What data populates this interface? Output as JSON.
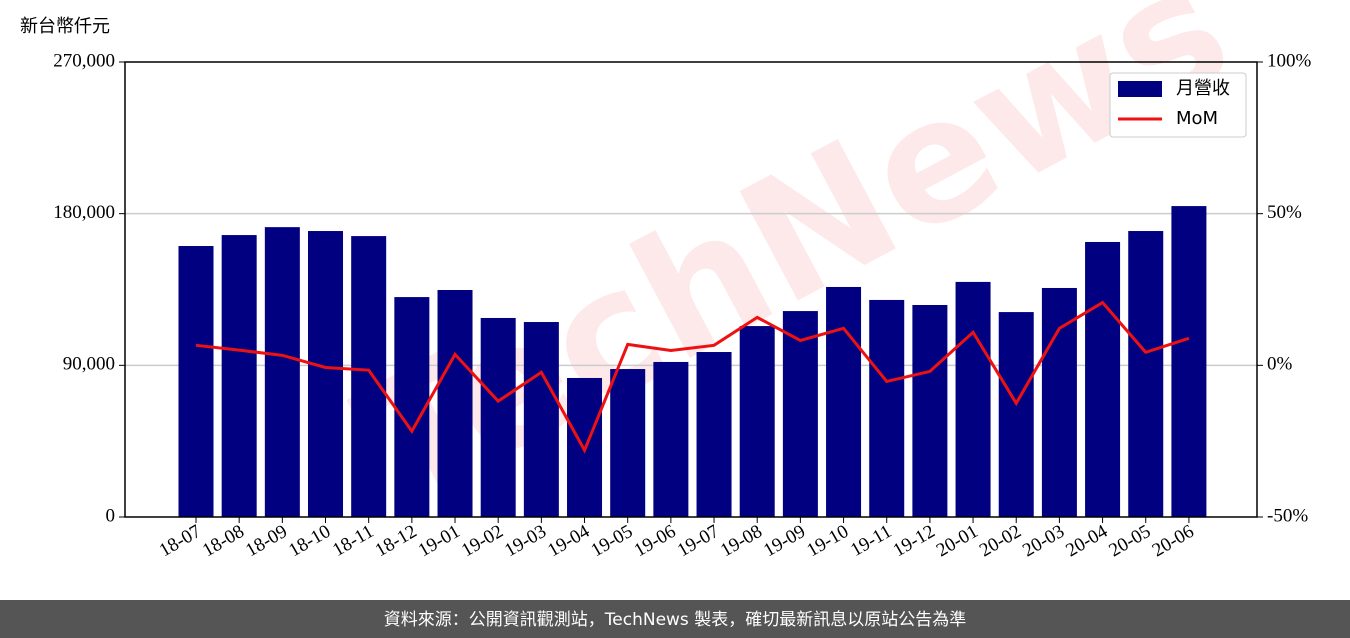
{
  "chart_data": {
    "type": "bar_line",
    "y_label": "新台幣仟元",
    "watermark": "TechNews",
    "source": "資料來源：公開資訊觀測站，TechNews 製表，確切最新訊息以原站公告為準",
    "categories": [
      "18-07",
      "18-08",
      "18-09",
      "18-10",
      "18-11",
      "18-12",
      "19-01",
      "19-02",
      "19-03",
      "19-04",
      "19-05",
      "19-06",
      "19-07",
      "19-08",
      "19-09",
      "19-10",
      "19-11",
      "19-12",
      "20-01",
      "20-02",
      "20-03",
      "20-04",
      "20-05",
      "20-06"
    ],
    "series": [
      {
        "name": "月營收",
        "type": "bar",
        "color": "#000080",
        "values": [
          160800,
          167300,
          172000,
          169700,
          166700,
          130500,
          134700,
          118100,
          115700,
          82500,
          87800,
          92000,
          97900,
          113300,
          122200,
          136500,
          128800,
          125800,
          139500,
          121600,
          135900,
          163200,
          169700,
          184500
        ]
      },
      {
        "name": "MoM",
        "type": "line",
        "color": "#ee1111",
        "axis": "y2",
        "values": [
          6.6,
          5.0,
          3.3,
          -0.7,
          -1.6,
          -21.7,
          3.6,
          -11.8,
          -2.3,
          -28,
          6.9,
          4.9,
          6.6,
          15.8,
          8.2,
          12.2,
          -5.3,
          -2.0,
          10.9,
          -12.5,
          12.2,
          20.7,
          4.3,
          8.9
        ]
      }
    ],
    "ylim": [
      0,
      270000
    ],
    "yticks": [
      0,
      {
        "value": 90000,
        "label": "90,000"
      },
      {
        "value": 180000,
        "label": "180,000"
      },
      {
        "value": 270000,
        "label": "270,000"
      }
    ],
    "y2lim": [
      -50,
      100
    ],
    "y2ticks": [
      {
        "value": -50,
        "label": "-50%"
      },
      {
        "value": 0,
        "label": "0%"
      },
      {
        "value": 50,
        "label": "50%"
      },
      {
        "value": 100,
        "label": "100%"
      }
    ],
    "grid": true,
    "legend": "upper right"
  }
}
